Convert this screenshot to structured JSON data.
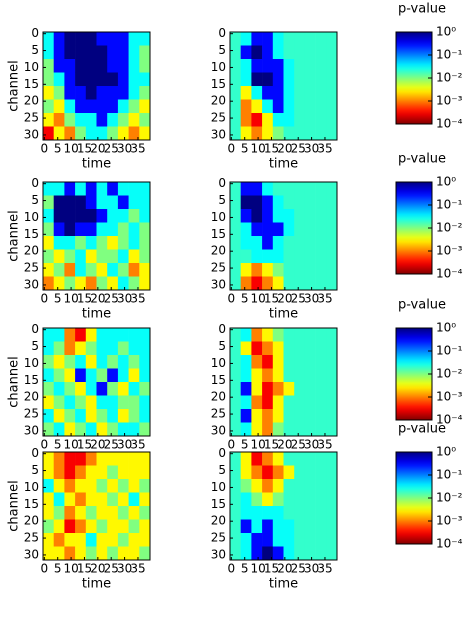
{
  "chart_data": [
    {
      "type": "heatmap",
      "xlabel": "time",
      "ylabel": "channel",
      "xlim": [
        -0.5,
        39.5
      ],
      "ylim": [
        31.5,
        -0.5
      ],
      "xticks": [
        0,
        5,
        10,
        15,
        20,
        25,
        30,
        35
      ],
      "yticks": [
        0,
        5,
        10,
        15,
        20,
        25,
        30
      ],
      "values": [
        [
          0.03,
          0.3,
          1,
          1,
          1,
          0.3,
          0.3,
          0.3,
          0.03,
          0.03
        ],
        [
          0.03,
          0.3,
          1,
          1,
          1,
          1,
          0.3,
          0.3,
          0.03,
          0.01
        ],
        [
          0.01,
          0.3,
          0.3,
          1,
          1,
          1,
          0.3,
          0.3,
          0.03,
          0.01
        ],
        [
          0.01,
          0.03,
          0.3,
          1,
          1,
          1,
          1,
          0.3,
          0.03,
          0.03
        ],
        [
          0.003,
          0.01,
          0.3,
          0.3,
          1,
          0.3,
          0.3,
          0.3,
          0.03,
          0.01
        ],
        [
          0.01,
          0.003,
          0.03,
          0.3,
          0.3,
          0.3,
          0.3,
          0.03,
          0.01,
          0.003
        ],
        [
          0.003,
          0.001,
          0.01,
          0.03,
          0.03,
          0.3,
          0.03,
          0.01,
          0.003,
          0.01
        ],
        [
          0.0003,
          0.003,
          0.001,
          0.01,
          0.03,
          0.03,
          0.01,
          0.003,
          0.001,
          0.003
        ]
      ]
    },
    {
      "type": "heatmap",
      "xlabel": "time",
      "xlim": [
        -0.5,
        39.5
      ],
      "ylim": [
        31.5,
        -0.5
      ],
      "xticks": [
        0,
        5,
        10,
        15,
        20,
        25,
        30,
        35
      ],
      "yticks": [
        0,
        5,
        10,
        15,
        20,
        25,
        30
      ],
      "values": [
        [
          0.02,
          0.03,
          0.3,
          0.3,
          0.03,
          0.02,
          0.02,
          0.02,
          0.02,
          0.02
        ],
        [
          0.02,
          0.3,
          1,
          0.3,
          0.03,
          0.02,
          0.02,
          0.02,
          0.02,
          0.02
        ],
        [
          0.02,
          0.03,
          0.3,
          0.3,
          0.3,
          0.03,
          0.02,
          0.02,
          0.02,
          0.02
        ],
        [
          0.02,
          0.03,
          1,
          1,
          0.3,
          0.03,
          0.02,
          0.02,
          0.02,
          0.02
        ],
        [
          0.02,
          0.003,
          0.03,
          0.3,
          0.3,
          0.03,
          0.02,
          0.02,
          0.02,
          0.02
        ],
        [
          0.02,
          0.001,
          0.003,
          0.03,
          0.3,
          0.03,
          0.02,
          0.02,
          0.02,
          0.02
        ],
        [
          0.02,
          0.001,
          0.0003,
          0.003,
          0.03,
          0.03,
          0.02,
          0.02,
          0.02,
          0.02
        ],
        [
          0.02,
          0.003,
          0.001,
          0.003,
          0.01,
          0.02,
          0.02,
          0.02,
          0.02,
          0.02
        ]
      ]
    },
    {
      "type": "colorbar",
      "title": "p-value",
      "colormap": "jet",
      "log": true,
      "ylim": [
        0.0001,
        1
      ],
      "yticks": [
        {
          "value": 1,
          "label": "10⁰"
        },
        {
          "value": 0.1,
          "label": "10⁻¹"
        },
        {
          "value": 0.01,
          "label": "10⁻²"
        },
        {
          "value": 0.001,
          "label": "10⁻³"
        },
        {
          "value": 0.0001,
          "label": "10⁻⁴"
        }
      ]
    },
    {
      "type": "heatmap",
      "xlabel": "time",
      "ylabel": "channel",
      "xlim": [
        -0.5,
        39.5
      ],
      "ylim": [
        31.5,
        -0.5
      ],
      "xticks": [
        0,
        5,
        10,
        15,
        20,
        25,
        30,
        35
      ],
      "yticks": [
        0,
        5,
        10,
        15,
        20,
        25,
        30
      ],
      "values": [
        [
          0.03,
          0.03,
          0.3,
          0.03,
          0.3,
          0.03,
          0.3,
          0.03,
          0.03,
          0.03
        ],
        [
          0.01,
          1,
          1,
          1,
          0.3,
          0.03,
          0.03,
          0.3,
          0.03,
          0.03
        ],
        [
          0.03,
          1,
          1,
          1,
          1,
          0.3,
          0.03,
          0.03,
          0.01,
          0.03
        ],
        [
          0.01,
          0.3,
          1,
          0.3,
          0.3,
          0.03,
          0.03,
          0.01,
          0.03,
          0.01
        ],
        [
          0.003,
          0.03,
          0.03,
          0.01,
          0.03,
          0.01,
          0.003,
          0.01,
          0.03,
          0.01
        ],
        [
          0.01,
          0.003,
          0.01,
          0.03,
          0.003,
          0.01,
          0.01,
          0.03,
          0.003,
          0.01
        ],
        [
          0.003,
          0.01,
          0.001,
          0.03,
          0.01,
          0.003,
          0.03,
          0.01,
          0.001,
          0.003
        ],
        [
          0.001,
          0.003,
          0.01,
          0.003,
          0.001,
          0.01,
          0.003,
          0.03,
          0.01,
          0.003
        ]
      ]
    },
    {
      "type": "heatmap",
      "xlabel": "time",
      "xlim": [
        -0.5,
        39.5
      ],
      "ylim": [
        31.5,
        -0.5
      ],
      "xticks": [
        0,
        5,
        10,
        15,
        20,
        25,
        30,
        35
      ],
      "yticks": [
        0,
        5,
        10,
        15,
        20,
        25,
        30
      ],
      "values": [
        [
          0.02,
          0.3,
          0.3,
          0.03,
          0.02,
          0.02,
          0.02,
          0.02,
          0.02,
          0.02
        ],
        [
          0.02,
          1,
          1,
          0.3,
          0.03,
          0.02,
          0.02,
          0.02,
          0.02,
          0.02
        ],
        [
          0.02,
          0.3,
          1,
          0.3,
          0.03,
          0.03,
          0.02,
          0.02,
          0.02,
          0.02
        ],
        [
          0.02,
          0.03,
          0.3,
          0.3,
          0.3,
          0.03,
          0.02,
          0.02,
          0.02,
          0.02
        ],
        [
          0.02,
          0.03,
          0.03,
          0.3,
          0.03,
          0.02,
          0.02,
          0.02,
          0.02,
          0.02
        ],
        [
          0.02,
          0.02,
          0.03,
          0.03,
          0.03,
          0.02,
          0.02,
          0.02,
          0.02,
          0.02
        ],
        [
          0.02,
          0.003,
          0.001,
          0.003,
          0.01,
          0.02,
          0.02,
          0.02,
          0.02,
          0.02
        ],
        [
          0.02,
          0.001,
          0.0003,
          0.001,
          0.003,
          0.02,
          0.02,
          0.02,
          0.02,
          0.02
        ]
      ]
    },
    {
      "type": "colorbar",
      "title": "p-value",
      "colormap": "jet",
      "log": true,
      "ylim": [
        0.0001,
        1
      ],
      "yticks": [
        {
          "value": 1,
          "label": "10⁰"
        },
        {
          "value": 0.1,
          "label": "10⁻¹"
        },
        {
          "value": 0.01,
          "label": "10⁻²"
        },
        {
          "value": 0.001,
          "label": "10⁻³"
        },
        {
          "value": 0.0001,
          "label": "10⁻⁴"
        }
      ]
    },
    {
      "type": "heatmap",
      "xlabel": "time",
      "ylabel": "channel",
      "xlim": [
        -0.5,
        39.5
      ],
      "ylim": [
        31.5,
        -0.5
      ],
      "xticks": [
        0,
        5,
        10,
        15,
        20,
        25,
        30,
        35
      ],
      "yticks": [
        0,
        5,
        10,
        15,
        20,
        25,
        30
      ],
      "values": [
        [
          0.03,
          0.03,
          0.001,
          0.0003,
          0.003,
          0.03,
          0.03,
          0.03,
          0.03,
          0.03
        ],
        [
          0.03,
          0.01,
          0.001,
          0.003,
          0.01,
          0.03,
          0.03,
          0.01,
          0.03,
          0.03
        ],
        [
          0.01,
          0.003,
          0.01,
          0.03,
          0.003,
          0.03,
          0.01,
          0.03,
          0.01,
          0.03
        ],
        [
          0.03,
          0.01,
          0.003,
          0.3,
          0.03,
          0.01,
          0.3,
          0.03,
          0.003,
          0.03
        ],
        [
          0.01,
          0.03,
          0.01,
          0.003,
          0.03,
          0.3,
          0.01,
          0.003,
          0.03,
          0.01
        ],
        [
          0.003,
          0.01,
          0.03,
          0.01,
          0.003,
          0.03,
          0.03,
          0.01,
          0.01,
          0.03
        ],
        [
          0.03,
          0.003,
          0.01,
          0.03,
          0.003,
          0.01,
          0.03,
          0.003,
          0.01,
          0.03
        ],
        [
          0.01,
          0.03,
          0.003,
          0.01,
          0.03,
          0.003,
          0.01,
          0.03,
          0.03,
          0.01
        ]
      ]
    },
    {
      "type": "heatmap",
      "xlabel": "time",
      "xlim": [
        -0.5,
        39.5
      ],
      "ylim": [
        31.5,
        -0.5
      ],
      "xticks": [
        0,
        5,
        10,
        15,
        20,
        25,
        30,
        35
      ],
      "yticks": [
        0,
        5,
        10,
        15,
        20,
        25,
        30
      ],
      "values": [
        [
          0.02,
          0.03,
          0.001,
          0.003,
          0.01,
          0.02,
          0.02,
          0.02,
          0.02,
          0.02
        ],
        [
          0.02,
          0.003,
          0.0003,
          0.001,
          0.003,
          0.02,
          0.02,
          0.02,
          0.02,
          0.02
        ],
        [
          0.02,
          0.03,
          0.001,
          0.0003,
          0.003,
          0.02,
          0.02,
          0.02,
          0.02,
          0.02
        ],
        [
          0.02,
          0.03,
          0.003,
          0.001,
          0.003,
          0.02,
          0.02,
          0.02,
          0.02,
          0.02
        ],
        [
          0.02,
          0.3,
          0.003,
          0.0003,
          0.001,
          0.003,
          0.02,
          0.02,
          0.02,
          0.02
        ],
        [
          0.02,
          0.03,
          0.001,
          0.0003,
          0.003,
          0.02,
          0.02,
          0.02,
          0.02,
          0.02
        ],
        [
          0.02,
          0.3,
          0.003,
          0.001,
          0.003,
          0.02,
          0.02,
          0.02,
          0.02,
          0.02
        ],
        [
          0.02,
          0.03,
          0.003,
          0.001,
          0.01,
          0.02,
          0.02,
          0.02,
          0.02,
          0.02
        ]
      ]
    },
    {
      "type": "colorbar",
      "title": "p-value",
      "colormap": "jet",
      "log": true,
      "ylim": [
        0.0001,
        1
      ],
      "yticks": [
        {
          "value": 1,
          "label": "10⁰"
        },
        {
          "value": 0.1,
          "label": "10⁻¹"
        },
        {
          "value": 0.01,
          "label": "10⁻²"
        },
        {
          "value": 0.001,
          "label": "10⁻³"
        },
        {
          "value": 0.0001,
          "label": "10⁻⁴"
        }
      ]
    },
    {
      "type": "heatmap",
      "xlabel": "time",
      "ylabel": "channel",
      "xlim": [
        -0.5,
        39.5
      ],
      "ylim": [
        31.5,
        -0.5
      ],
      "xticks": [
        0,
        5,
        10,
        15,
        20,
        25,
        30,
        35
      ],
      "yticks": [
        0,
        5,
        10,
        15,
        20,
        25,
        30
      ],
      "values": [
        [
          0.003,
          0.001,
          0.0003,
          0.0003,
          0.001,
          0.003,
          0.003,
          0.003,
          0.003,
          0.003
        ],
        [
          0.003,
          0.001,
          0.0003,
          0.001,
          0.003,
          0.003,
          0.01,
          0.003,
          0.003,
          0.003
        ],
        [
          0.03,
          0.003,
          0.001,
          0.003,
          0.003,
          0.01,
          0.003,
          0.01,
          0.003,
          0.01
        ],
        [
          0.003,
          0.03,
          0.003,
          0.001,
          0.003,
          0.003,
          0.01,
          0.003,
          0.03,
          0.003
        ],
        [
          0.003,
          0.01,
          0.001,
          0.003,
          0.01,
          0.003,
          0.003,
          0.01,
          0.003,
          0.01
        ],
        [
          0.01,
          0.003,
          0.0003,
          0.001,
          0.003,
          0.01,
          0.003,
          0.003,
          0.01,
          0.003
        ],
        [
          0.003,
          0.001,
          0.003,
          0.003,
          0.03,
          0.003,
          0.003,
          0.01,
          0.003,
          0.003
        ],
        [
          0.003,
          0.003,
          0.001,
          0.003,
          0.01,
          0.003,
          0.01,
          0.003,
          0.003,
          0.01
        ]
      ]
    },
    {
      "type": "heatmap",
      "xlabel": "time",
      "xlim": [
        -0.5,
        39.5
      ],
      "ylim": [
        31.5,
        -0.5
      ],
      "xticks": [
        0,
        5,
        10,
        15,
        20,
        25,
        30,
        35
      ],
      "yticks": [
        0,
        5,
        10,
        15,
        20,
        25,
        30
      ],
      "values": [
        [
          0.02,
          0.003,
          0.0003,
          0.001,
          0.003,
          0.02,
          0.02,
          0.02,
          0.02,
          0.02
        ],
        [
          0.02,
          0.003,
          0.001,
          0.0003,
          0.001,
          0.003,
          0.02,
          0.02,
          0.02,
          0.02
        ],
        [
          0.02,
          0.01,
          0.003,
          0.001,
          0.003,
          0.02,
          0.02,
          0.02,
          0.02,
          0.02
        ],
        [
          0.02,
          0.03,
          0.01,
          0.003,
          0.01,
          0.02,
          0.02,
          0.02,
          0.02,
          0.02
        ],
        [
          0.02,
          0.03,
          0.03,
          0.03,
          0.03,
          0.02,
          0.02,
          0.02,
          0.02,
          0.02
        ],
        [
          0.02,
          0.3,
          0.03,
          0.3,
          0.03,
          0.03,
          0.02,
          0.02,
          0.02,
          0.02
        ],
        [
          0.02,
          0.03,
          0.3,
          0.3,
          0.03,
          0.03,
          0.02,
          0.02,
          0.02,
          0.02
        ],
        [
          0.02,
          0.03,
          0.3,
          1,
          0.3,
          0.03,
          0.02,
          0.02,
          0.02,
          0.02
        ]
      ]
    },
    {
      "type": "colorbar",
      "title": "p-value",
      "colormap": "jet",
      "log": true,
      "ylim": [
        0.0001,
        1
      ],
      "yticks": [
        {
          "value": 1,
          "label": "10⁰"
        },
        {
          "value": 0.1,
          "label": "10⁻¹"
        },
        {
          "value": 0.01,
          "label": "10⁻²"
        },
        {
          "value": 0.001,
          "label": "10⁻³"
        },
        {
          "value": 0.0001,
          "label": "10⁻⁴"
        }
      ]
    }
  ]
}
